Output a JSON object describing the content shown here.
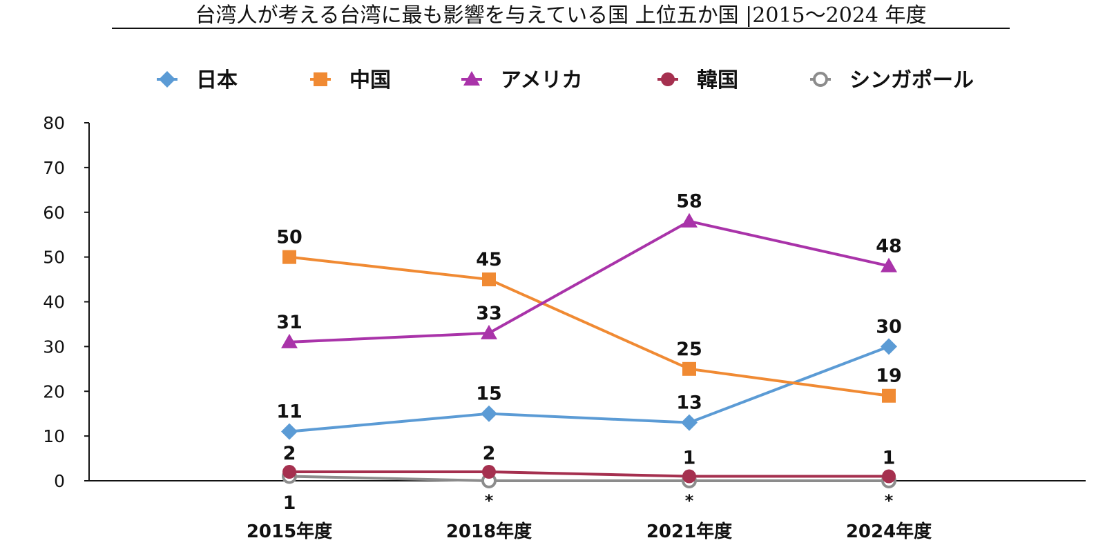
{
  "chart_data": {
    "type": "line",
    "title": "台湾人が考える台湾に最も影響を与えている国 上位五か国 |2015～2024 年度",
    "xlabel": "",
    "ylabel": "",
    "categories": [
      "2015年度",
      "2018年度",
      "2021年度",
      "2024年度"
    ],
    "ylim": [
      0,
      80
    ],
    "yticks": [
      0,
      10,
      20,
      30,
      40,
      50,
      60,
      70,
      80
    ],
    "grid": false,
    "legend_position": "top",
    "series": [
      {
        "name": "日本",
        "color": "#5B9BD5",
        "marker": "diamond",
        "values": [
          11,
          15,
          13,
          30
        ],
        "labels": [
          "11",
          "15",
          "13",
          "30"
        ]
      },
      {
        "name": "中国",
        "color": "#F08A33",
        "marker": "square",
        "values": [
          50,
          45,
          25,
          19
        ],
        "labels": [
          "50",
          "45",
          "25",
          "19"
        ]
      },
      {
        "name": "アメリカ",
        "color": "#A933A9",
        "marker": "triangle",
        "values": [
          31,
          33,
          58,
          48
        ],
        "labels": [
          "31",
          "33",
          "58",
          "48"
        ]
      },
      {
        "name": "韓国",
        "color": "#A5304F",
        "marker": "circle",
        "values": [
          2,
          2,
          1,
          1
        ],
        "labels": [
          "2",
          "2",
          "1",
          "1"
        ]
      },
      {
        "name": "シンガポール",
        "color": "#8C8C8C",
        "marker": "circle-open",
        "values": [
          1,
          0,
          0,
          0
        ],
        "labels": [
          "1",
          "*",
          "*",
          "*"
        ]
      }
    ]
  }
}
